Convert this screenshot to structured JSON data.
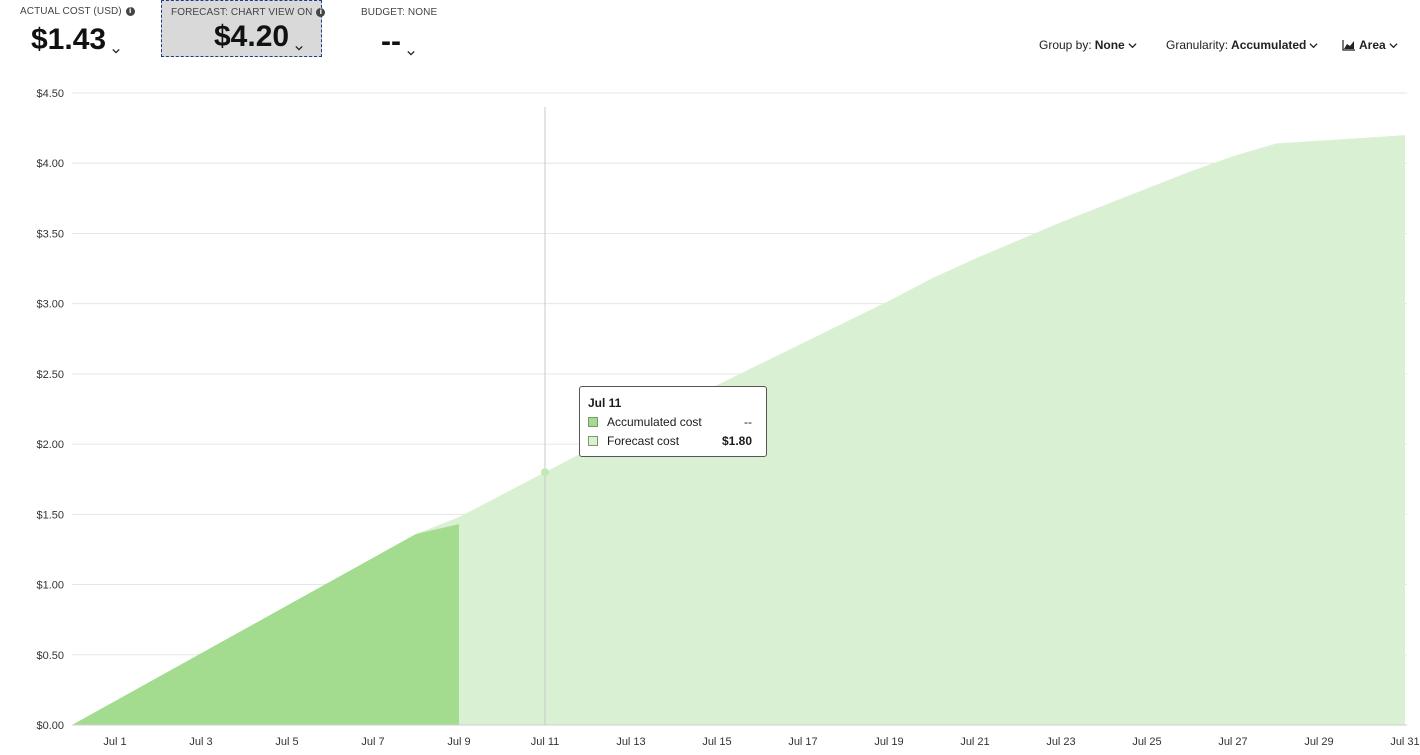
{
  "kpis": {
    "actual": {
      "label": "ACTUAL COST (USD)",
      "value": "$1.43"
    },
    "forecast": {
      "label": "FORECAST: CHART VIEW ON",
      "value": "$4.20"
    },
    "budget": {
      "label": "BUDGET: NONE",
      "value": "--"
    }
  },
  "controls": {
    "group_by": {
      "label": "Group by:",
      "value": "None"
    },
    "granularity": {
      "label": "Granularity:",
      "value": "Accumulated"
    },
    "chart_type": {
      "value": "Area"
    }
  },
  "tooltip": {
    "date": "Jul 11",
    "rows": [
      {
        "name": "Accumulated cost",
        "value": "--"
      },
      {
        "name": "Forecast cost",
        "value": "$1.80"
      }
    ]
  },
  "colors": {
    "accumulated": "#a3dc8e",
    "forecast": "#d9f0d2",
    "gridline": "#e6e6e6"
  },
  "chart_data": {
    "type": "area",
    "y_ticks": [
      "$0.00",
      "$0.50",
      "$1.00",
      "$1.50",
      "$2.00",
      "$2.50",
      "$3.00",
      "$3.50",
      "$4.00",
      "$4.50"
    ],
    "ylim": [
      0,
      4.5
    ],
    "x_ticks": [
      "Jul 1",
      "Jul 3",
      "Jul 5",
      "Jul 7",
      "Jul 9",
      "Jul 11",
      "Jul 13",
      "Jul 15",
      "Jul 17",
      "Jul 19",
      "Jul 21",
      "Jul 23",
      "Jul 25",
      "Jul 27",
      "Jul 29",
      "Jul 31"
    ],
    "series": [
      {
        "name": "Accumulated cost",
        "x": [
          "Jun 30",
          "Jul 1",
          "Jul 2",
          "Jul 3",
          "Jul 4",
          "Jul 5",
          "Jul 6",
          "Jul 7",
          "Jul 8",
          "Jul 9"
        ],
        "values": [
          0.0,
          0.17,
          0.34,
          0.51,
          0.68,
          0.85,
          1.02,
          1.19,
          1.36,
          1.43
        ]
      },
      {
        "name": "Forecast cost",
        "x": [
          "Jun 30",
          "Jul 1",
          "Jul 2",
          "Jul 3",
          "Jul 4",
          "Jul 5",
          "Jul 6",
          "Jul 7",
          "Jul 8",
          "Jul 9",
          "Jul 10",
          "Jul 11",
          "Jul 12",
          "Jul 13",
          "Jul 14",
          "Jul 15",
          "Jul 16",
          "Jul 17",
          "Jul 18",
          "Jul 19",
          "Jul 20",
          "Jul 21",
          "Jul 22",
          "Jul 23",
          "Jul 24",
          "Jul 25",
          "Jul 26",
          "Jul 27",
          "Jul 28",
          "Jul 29",
          "Jul 30",
          "Jul 31"
        ],
        "values": [
          0.0,
          0.17,
          0.34,
          0.51,
          0.68,
          0.85,
          1.02,
          1.19,
          1.36,
          1.48,
          1.64,
          1.8,
          1.96,
          2.12,
          2.27,
          2.42,
          2.57,
          2.72,
          2.87,
          3.02,
          3.18,
          3.32,
          3.45,
          3.58,
          3.7,
          3.82,
          3.94,
          4.05,
          4.14,
          4.16,
          4.18,
          4.2
        ]
      }
    ],
    "highlight": {
      "x": "Jul 11",
      "value": 1.8
    }
  }
}
